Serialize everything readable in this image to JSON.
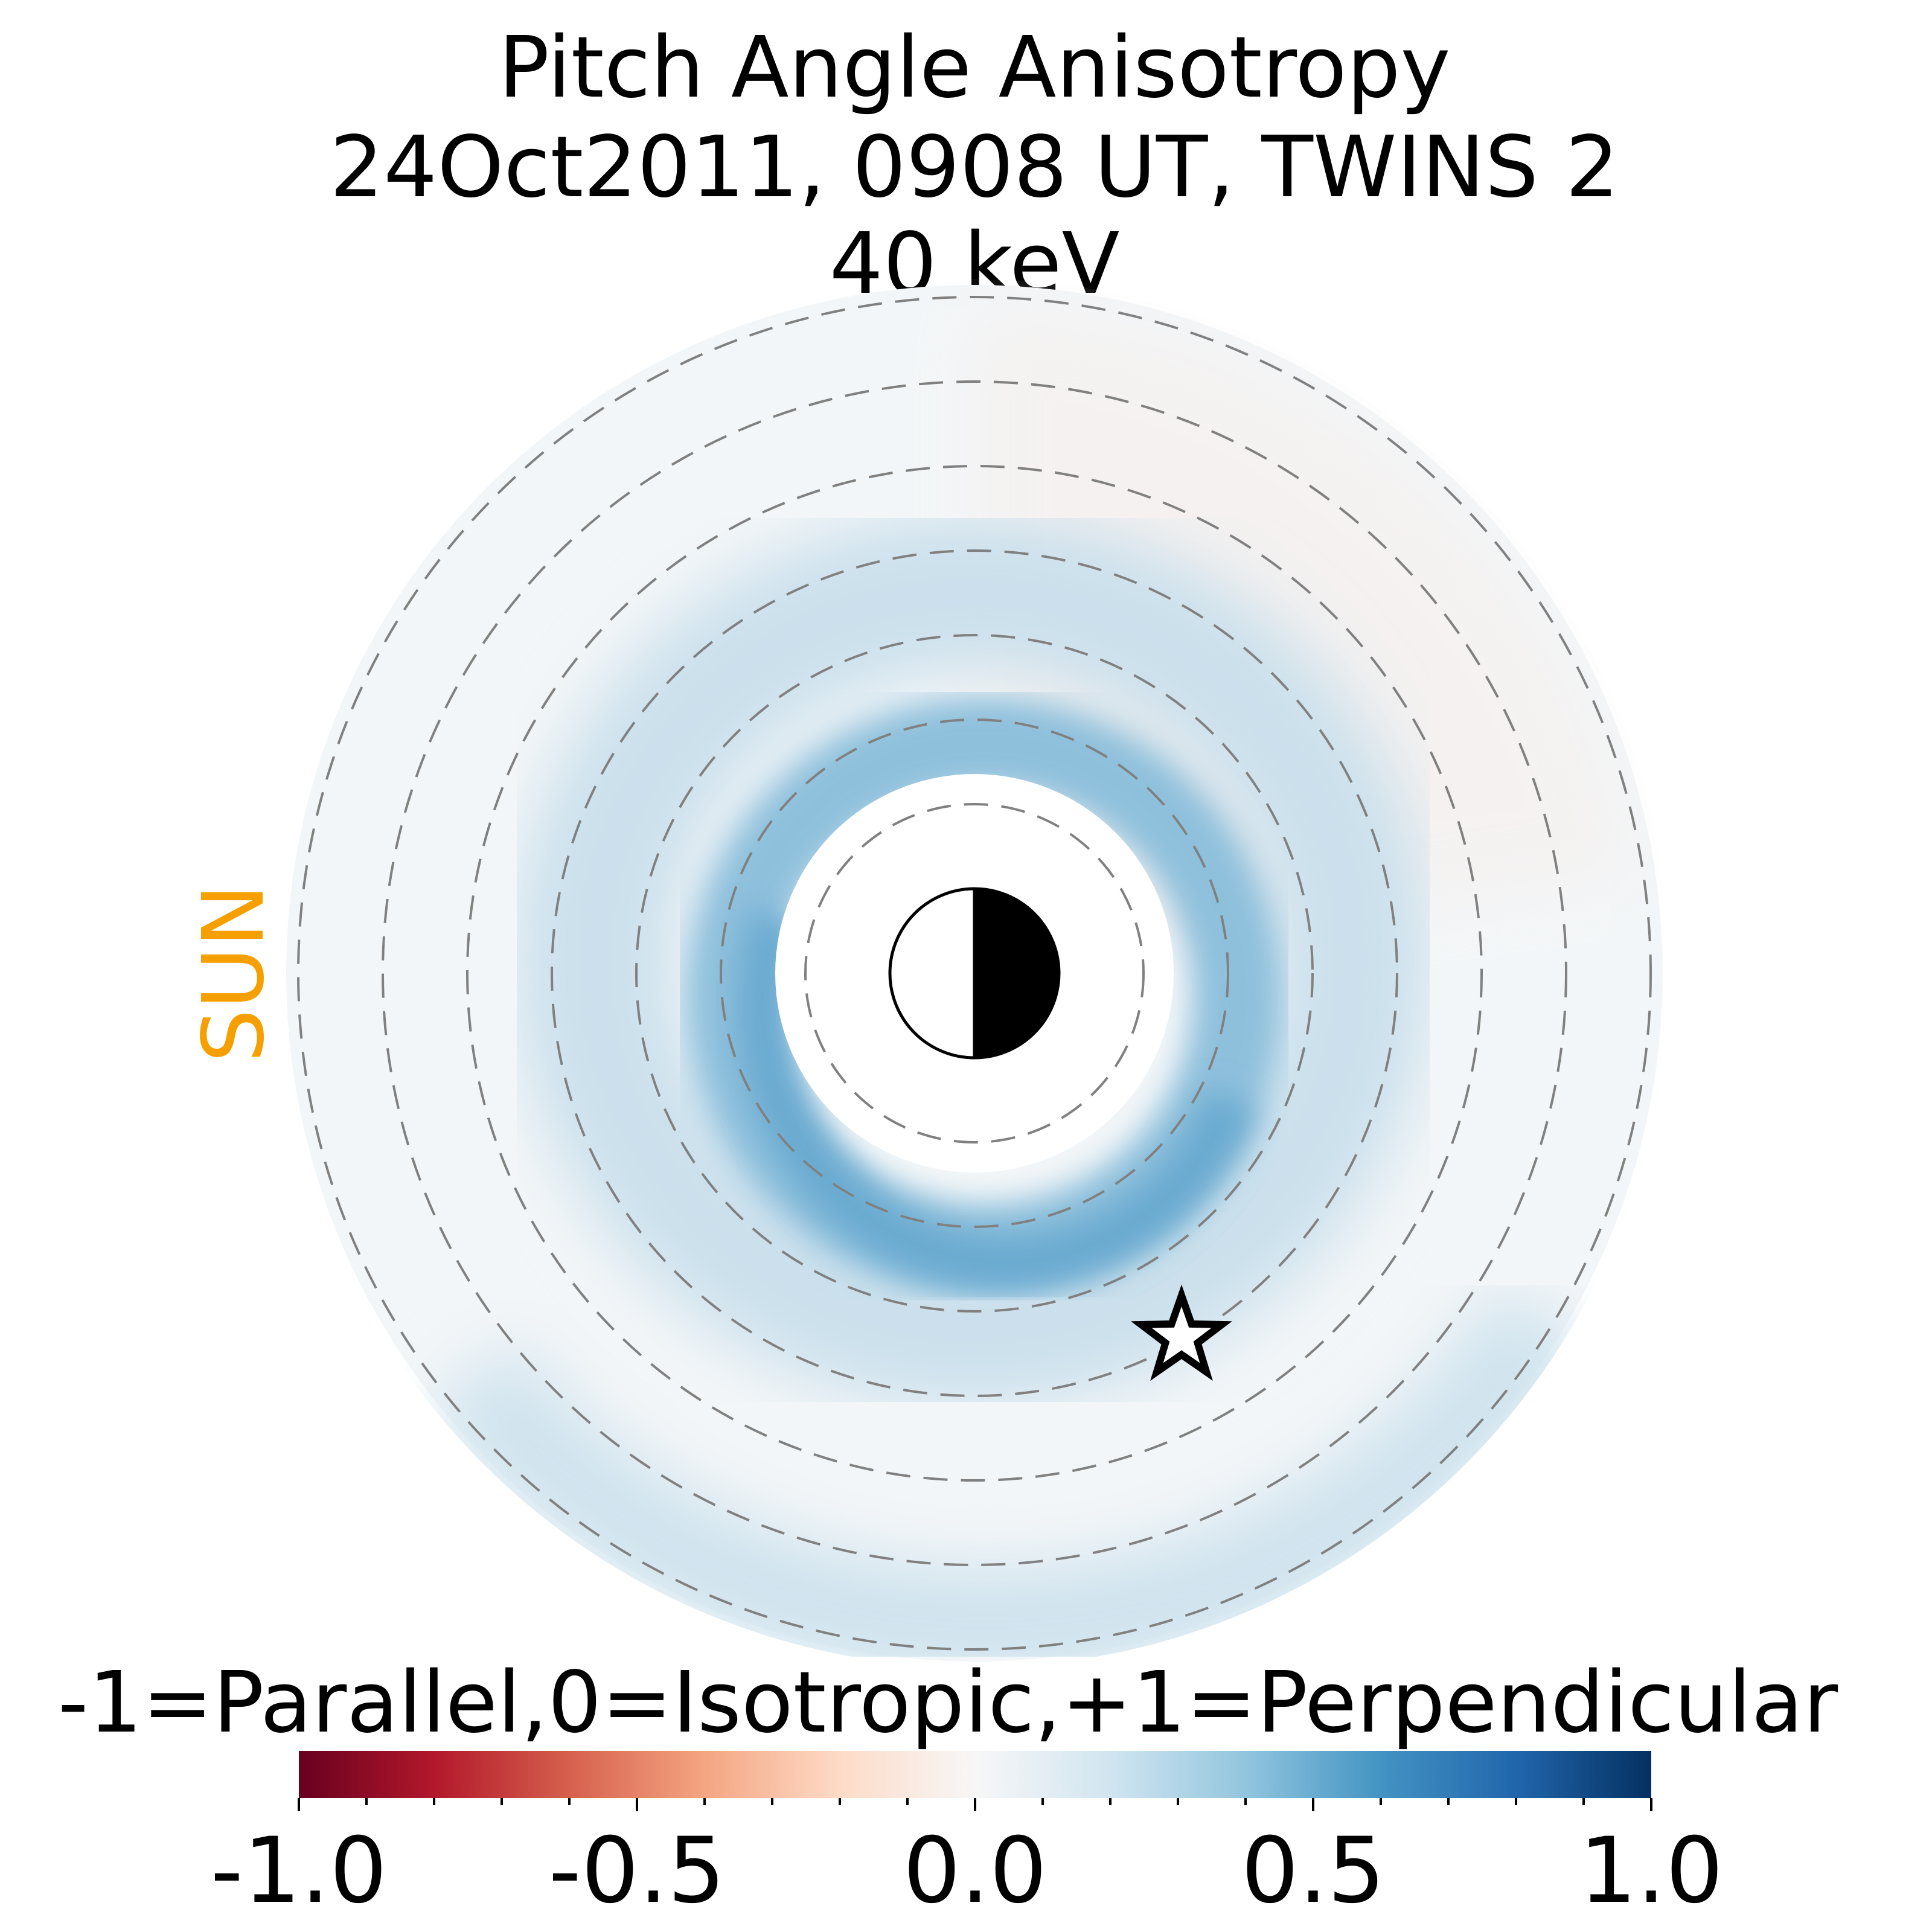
{
  "chart_data": {
    "type": "heatmap",
    "projection": "polar equatorial map, Earth at center",
    "title_lines": [
      "Pitch Angle Anisotropy",
      "24Oct2011, 0908 UT,  TWINS 2",
      "40 keV"
    ],
    "sun_label": "SUN",
    "sun_label_color": "#f5a000",
    "colorbar": {
      "label": "-1=Parallel,0=Isotropic,+1=Perpendicular",
      "colormap": "RdBu",
      "vmin": -1.0,
      "vmax": 1.0,
      "tick_labels": [
        "-1.0",
        "-0.5",
        "0.0",
        "0.5",
        "1.0"
      ],
      "tick_values": [
        -1.0,
        -0.5,
        0.0,
        0.5,
        1.0
      ],
      "minor_tick_step": 0.1,
      "color_stops": [
        "#67001f",
        "#b2182b",
        "#d6604d",
        "#f4a582",
        "#fddbc7",
        "#f7f7f7",
        "#d1e5f0",
        "#92c5de",
        "#4393c3",
        "#2166ac",
        "#053061"
      ]
    },
    "reference_circles_re": [
      2,
      3,
      4,
      5,
      6,
      7,
      8
    ],
    "data_region_re": [
      2.5,
      8
    ],
    "anisotropy_profile": {
      "radius_re": [
        2.5,
        3.0,
        3.5,
        4.0,
        5.0,
        6.0,
        7.0,
        8.0
      ],
      "values_nightside": [
        0.5,
        0.45,
        0.3,
        0.15,
        0.05,
        0.1,
        0.2,
        0.3
      ],
      "values_dayside": [
        0.3,
        0.3,
        0.2,
        0.1,
        0.05,
        0.03,
        0.0,
        -0.03
      ]
    },
    "spacecraft_marker": {
      "symbol": "star",
      "x_re": 2.5,
      "y_re": -4.4
    },
    "earth_symbol": "half-shaded-circle"
  }
}
